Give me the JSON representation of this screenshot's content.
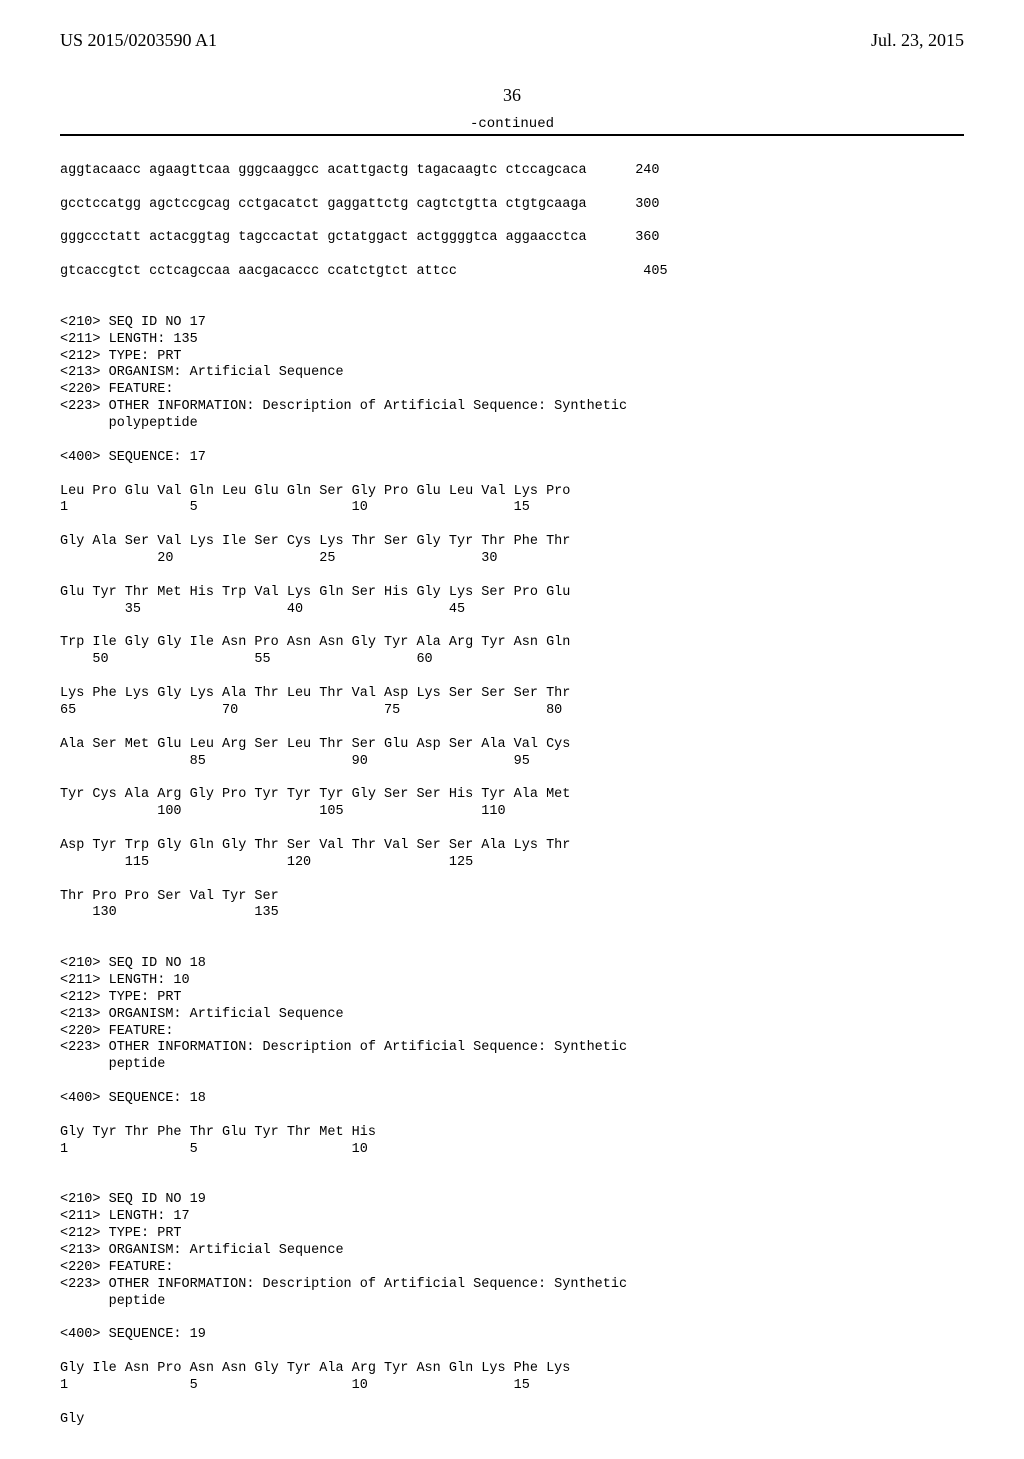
{
  "header": {
    "pub_number": "US 2015/0203590 A1",
    "pub_date": "Jul. 23, 2015"
  },
  "page_number": "36",
  "continued_label": "-continued",
  "lines": {
    "dna1": "aggtacaacc agaagttcaa gggcaaggcc acattgactg tagacaagtc ctccagcaca      240",
    "dna2": "gcctccatgg agctccgcag cctgacatct gaggattctg cagtctgtta ctgtgcaaga      300",
    "dna3": "gggccctatt actacggtag tagccactat gctatggact actggggtca aggaacctca      360",
    "dna4": "gtcaccgtct cctcagccaa aacgacaccc ccatctgtct attcc                       405",
    "seq17_header1": "<210> SEQ ID NO 17",
    "seq17_header2": "<211> LENGTH: 135",
    "seq17_header3": "<212> TYPE: PRT",
    "seq17_header4": "<213> ORGANISM: Artificial Sequence",
    "seq17_header5": "<220> FEATURE:",
    "seq17_header6": "<223> OTHER INFORMATION: Description of Artificial Sequence: Synthetic",
    "seq17_header7": "      polypeptide",
    "seq17_seq_label": "<400> SEQUENCE: 17",
    "seq17_aa1": "Leu Pro Glu Val Gln Leu Glu Gln Ser Gly Pro Glu Leu Val Lys Pro",
    "seq17_nm1": "1               5                   10                  15",
    "seq17_aa2": "Gly Ala Ser Val Lys Ile Ser Cys Lys Thr Ser Gly Tyr Thr Phe Thr",
    "seq17_nm2": "            20                  25                  30",
    "seq17_aa3": "Glu Tyr Thr Met His Trp Val Lys Gln Ser His Gly Lys Ser Pro Glu",
    "seq17_nm3": "        35                  40                  45",
    "seq17_aa4": "Trp Ile Gly Gly Ile Asn Pro Asn Asn Gly Tyr Ala Arg Tyr Asn Gln",
    "seq17_nm4": "    50                  55                  60",
    "seq17_aa5": "Lys Phe Lys Gly Lys Ala Thr Leu Thr Val Asp Lys Ser Ser Ser Thr",
    "seq17_nm5": "65                  70                  75                  80",
    "seq17_aa6": "Ala Ser Met Glu Leu Arg Ser Leu Thr Ser Glu Asp Ser Ala Val Cys",
    "seq17_nm6": "                85                  90                  95",
    "seq17_aa7": "Tyr Cys Ala Arg Gly Pro Tyr Tyr Tyr Gly Ser Ser His Tyr Ala Met",
    "seq17_nm7": "            100                 105                 110",
    "seq17_aa8": "Asp Tyr Trp Gly Gln Gly Thr Ser Val Thr Val Ser Ser Ala Lys Thr",
    "seq17_nm8": "        115                 120                 125",
    "seq17_aa9": "Thr Pro Pro Ser Val Tyr Ser",
    "seq17_nm9": "    130                 135",
    "seq18_header1": "<210> SEQ ID NO 18",
    "seq18_header2": "<211> LENGTH: 10",
    "seq18_header3": "<212> TYPE: PRT",
    "seq18_header4": "<213> ORGANISM: Artificial Sequence",
    "seq18_header5": "<220> FEATURE:",
    "seq18_header6": "<223> OTHER INFORMATION: Description of Artificial Sequence: Synthetic",
    "seq18_header7": "      peptide",
    "seq18_seq_label": "<400> SEQUENCE: 18",
    "seq18_aa1": "Gly Tyr Thr Phe Thr Glu Tyr Thr Met His",
    "seq18_nm1": "1               5                   10",
    "seq19_header1": "<210> SEQ ID NO 19",
    "seq19_header2": "<211> LENGTH: 17",
    "seq19_header3": "<212> TYPE: PRT",
    "seq19_header4": "<213> ORGANISM: Artificial Sequence",
    "seq19_header5": "<220> FEATURE:",
    "seq19_header6": "<223> OTHER INFORMATION: Description of Artificial Sequence: Synthetic",
    "seq19_header7": "      peptide",
    "seq19_seq_label": "<400> SEQUENCE: 19",
    "seq19_aa1": "Gly Ile Asn Pro Asn Asn Gly Tyr Ala Arg Tyr Asn Gln Lys Phe Lys",
    "seq19_nm1": "1               5                   10                  15",
    "seq19_aa2": "Gly"
  }
}
